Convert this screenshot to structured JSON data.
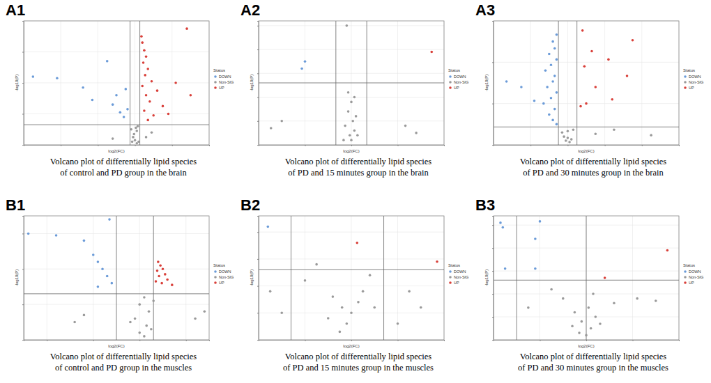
{
  "chart_data": [
    {
      "type": "scatter",
      "panel": "A1",
      "title": [
        "Volcano plot of differentially lipid species",
        "of control and PD group in the brain"
      ],
      "xlabel": "log2(FC)",
      "ylabel": "-log10(P)",
      "xlim": [
        -6,
        4
      ],
      "ylim": [
        0,
        8
      ],
      "xticks": [
        -6,
        -4,
        -2,
        0,
        2,
        4
      ],
      "yticks": [
        0,
        2,
        4,
        6,
        8
      ],
      "tick_labels": false,
      "grid": true,
      "legend": "right",
      "legend_title": "Status",
      "reference_lines": {
        "x": [
          -0.263,
          0.263
        ],
        "y": [
          1.3
        ]
      },
      "series": [
        {
          "name": "DOWN",
          "color": "#6b9bd8",
          "x": [
            -5.5,
            -4.2,
            -2.8,
            -1.5,
            -2.3,
            -1.0,
            -1.2,
            -0.8,
            -0.6,
            -0.5,
            -0.4
          ],
          "values": [
            4.4,
            4.3,
            3.7,
            5.4,
            2.9,
            3.2,
            2.6,
            2.1,
            1.8,
            3.6,
            2.3
          ]
        },
        {
          "name": "Non-SIG",
          "color": "#9a9a9a",
          "x": [
            -0.1,
            0.1,
            0.0,
            -0.2,
            0.2,
            0.15,
            -0.05,
            0.05,
            0.1,
            -1.2,
            0.6,
            0.9,
            -0.15
          ],
          "values": [
            0.5,
            0.9,
            0.3,
            1.0,
            0.2,
            1.2,
            0.7,
            1.1,
            0.1,
            0.4,
            0.5,
            0.8,
            0.2
          ]
        },
        {
          "name": "UP",
          "color": "#d9403a",
          "x": [
            0.35,
            0.4,
            0.5,
            0.6,
            0.45,
            0.7,
            0.55,
            0.9,
            0.4,
            1.2,
            0.6,
            0.8,
            1.5,
            0.5,
            1.0,
            0.7,
            2.8,
            2.2,
            3.0,
            1.8
          ],
          "values": [
            7.0,
            6.6,
            6.1,
            5.7,
            5.3,
            4.9,
            4.5,
            4.1,
            3.8,
            3.5,
            3.2,
            2.8,
            2.5,
            2.2,
            1.9,
            1.6,
            7.5,
            4.0,
            3.2,
            2.0
          ]
        }
      ]
    },
    {
      "type": "scatter",
      "panel": "A2",
      "title": [
        "Volcano plot of differentially lipid species",
        "of PD and 15 minutes group in the brain"
      ],
      "xlabel": "log2(FC)",
      "ylabel": "-log10(P)",
      "xlim": [
        -6,
        6
      ],
      "ylim": [
        0,
        2.6
      ],
      "xticks": [
        -6,
        -3,
        0,
        3,
        6
      ],
      "yticks": [
        0,
        0.5,
        1,
        1.5,
        2,
        2.5
      ],
      "tick_labels": false,
      "grid": true,
      "legend": "right",
      "legend_title": "Status",
      "reference_lines": {
        "x": [
          -1,
          1
        ],
        "y": [
          1.3
        ]
      },
      "series": [
        {
          "name": "DOWN",
          "color": "#6b9bd8",
          "x": [
            -3.0,
            -3.2
          ],
          "values": [
            1.75,
            1.6
          ]
        },
        {
          "name": "Non-SIG",
          "color": "#9a9a9a",
          "x": [
            -0.3,
            0,
            -0.2,
            0.1,
            0.2,
            -0.1,
            0.3,
            -0.4,
            0,
            0.4,
            -0.5,
            -4.5,
            -5.2,
            3.5,
            4.2,
            0.2,
            -0.2
          ],
          "values": [
            2.5,
            0.9,
            0.7,
            0.5,
            0.3,
            0.2,
            0.6,
            0.4,
            0.1,
            0.2,
            0.1,
            0.5,
            0.35,
            0.4,
            0.25,
            1.0,
            1.1
          ]
        },
        {
          "name": "UP",
          "color": "#d9403a",
          "x": [
            5.2
          ],
          "values": [
            1.95
          ]
        }
      ]
    },
    {
      "type": "scatter",
      "panel": "A3",
      "title": [
        "Volcano plot of differentially lipid species",
        "of PD and 30 minutes group in the brain"
      ],
      "xlabel": "log2(FC)",
      "ylabel": "-log10(P)",
      "xlim": [
        -4,
        6
      ],
      "ylim": [
        0,
        9
      ],
      "xticks": [
        -4,
        -2,
        0,
        2,
        4,
        6
      ],
      "yticks": [
        0,
        3,
        6,
        9
      ],
      "tick_labels": false,
      "grid": true,
      "legend": "right",
      "legend_title": "Status",
      "reference_lines": {
        "x": [
          -0.5,
          0.5
        ],
        "y": [
          1.3
        ]
      },
      "series": [
        {
          "name": "DOWN",
          "color": "#6b9bd8",
          "x": [
            -0.6,
            -0.8,
            -0.7,
            -1.0,
            -0.6,
            -0.9,
            -1.2,
            -0.7,
            -0.8,
            -1.1,
            -0.6,
            -0.9,
            -1.3,
            -0.7,
            -1.0,
            -0.8,
            -0.6,
            -3.3,
            -2.5,
            -1.8
          ],
          "values": [
            8.0,
            7.5,
            7.0,
            6.6,
            6.2,
            5.8,
            5.4,
            5.0,
            4.6,
            4.2,
            3.8,
            3.4,
            3.0,
            2.6,
            2.2,
            1.8,
            1.5,
            4.6,
            4.2,
            3.2
          ]
        },
        {
          "name": "Non-SIG",
          "color": "#9a9a9a",
          "x": [
            0,
            -0.2,
            0.2,
            -0.3,
            0.1,
            0.3,
            0,
            -0.1,
            1.5,
            2.5,
            4.5
          ],
          "values": [
            1.0,
            0.6,
            0.4,
            0.9,
            0.2,
            1.1,
            0.5,
            0.3,
            0.8,
            1.1,
            0.7
          ]
        },
        {
          "name": "UP",
          "color": "#d9403a",
          "x": [
            0.8,
            3.5,
            1.3,
            2.2,
            0.9,
            3.2,
            1.5,
            2.4,
            1.0,
            0.7
          ],
          "values": [
            8.3,
            7.6,
            6.8,
            6.2,
            5.7,
            5.0,
            4.2,
            3.3,
            3.0,
            2.8
          ]
        }
      ]
    },
    {
      "type": "scatter",
      "panel": "B1",
      "title": [
        "Volcano plot of differentially lipid species",
        "of control and PD group in the muscles"
      ],
      "xlabel": "log2(FC)",
      "ylabel": "-log10(P)",
      "xlim": [
        -2.5,
        1.5
      ],
      "ylim": [
        0,
        3.5
      ],
      "xticks": [
        -2,
        -1,
        0,
        1
      ],
      "yticks": [
        0,
        1,
        2,
        3
      ],
      "tick_labels": false,
      "grid": true,
      "legend": "right",
      "legend_title": "Status",
      "reference_lines": {
        "x": [
          -0.5,
          0.3
        ],
        "y": [
          1.3
        ]
      },
      "series": [
        {
          "name": "DOWN",
          "color": "#6b9bd8",
          "x": [
            -2.4,
            -1.8,
            -0.65,
            -1.2,
            -1.0,
            -0.9,
            -0.8,
            -0.7,
            -0.6,
            -0.9
          ],
          "values": [
            3.0,
            2.95,
            3.4,
            2.8,
            2.4,
            2.2,
            2.0,
            1.8,
            1.6,
            1.5
          ]
        },
        {
          "name": "Non-SIG",
          "color": "#9a9a9a",
          "x": [
            0.1,
            0,
            0.2,
            -0.1,
            0.15,
            0,
            0.25,
            -0.2,
            0.1,
            -1.4,
            -1.2,
            1.2,
            1.4,
            0.3
          ],
          "values": [
            1.2,
            1.0,
            0.8,
            0.6,
            0.4,
            0.2,
            0.3,
            0.5,
            0.1,
            0.5,
            0.7,
            0.6,
            0.8,
            1.1
          ]
        },
        {
          "name": "UP",
          "color": "#d9403a",
          "x": [
            0.4,
            0.45,
            0.5,
            0.38,
            0.55,
            0.42,
            0.6,
            0.35,
            0.48,
            0.7
          ],
          "values": [
            2.2,
            2.1,
            2.0,
            1.95,
            1.85,
            1.8,
            1.7,
            1.65,
            1.6,
            1.55
          ]
        }
      ]
    },
    {
      "type": "scatter",
      "panel": "B2",
      "title": [
        "Volcano plot of differentially lipid species",
        "of PD and 15 minutes group in the muscles"
      ],
      "xlabel": "log2(FC)",
      "ylabel": "-log10(P)",
      "xlim": [
        -4,
        4
      ],
      "ylim": [
        0,
        2.3
      ],
      "xticks": [
        -4,
        -2,
        0,
        2,
        4
      ],
      "yticks": [
        0,
        0.5,
        1,
        1.5,
        2
      ],
      "tick_labels": false,
      "grid": true,
      "legend": "right",
      "legend_title": "Status",
      "reference_lines": {
        "x": [
          -2.6,
          1.4
        ],
        "y": [
          1.3
        ]
      },
      "series": [
        {
          "name": "DOWN",
          "color": "#6b9bd8",
          "x": [
            -3.6
          ],
          "values": [
            2.1
          ]
        },
        {
          "name": "Non-SIG",
          "color": "#9a9a9a",
          "x": [
            -1.0,
            -0.5,
            -0.2,
            0,
            0.3,
            -0.4,
            0.5,
            -0.8,
            1.0,
            -3.0,
            -2.0,
            2.5,
            3.0,
            -1.5,
            0.8,
            2.0,
            -3.5
          ],
          "values": [
            0.4,
            0.15,
            0.3,
            0.5,
            0.7,
            0.6,
            0.9,
            0.8,
            0.6,
            0.5,
            1.1,
            0.9,
            0.6,
            1.4,
            1.2,
            0.3,
            0.9
          ]
        },
        {
          "name": "UP",
          "color": "#d9403a",
          "x": [
            0.25,
            3.7
          ],
          "values": [
            1.8,
            1.45
          ]
        }
      ]
    },
    {
      "type": "scatter",
      "panel": "B3",
      "title": [
        "Volcano plot of differentially lipid species",
        "of PD and 30 minutes group in the muscles"
      ],
      "xlabel": "log2(FC)",
      "ylabel": "-log10(P)",
      "xlim": [
        -4,
        4
      ],
      "ylim": [
        0,
        2.7
      ],
      "xticks": [
        -4,
        -2,
        0,
        2,
        4
      ],
      "yticks": [
        0,
        0.5,
        1,
        1.5,
        2,
        2.5
      ],
      "tick_labels": false,
      "grid": true,
      "legend": "right",
      "legend_title": "Status",
      "reference_lines": {
        "x": [
          -3.0,
          0.0
        ],
        "y": [
          1.3
        ]
      },
      "series": [
        {
          "name": "DOWN",
          "color": "#6b9bd8",
          "x": [
            -3.7,
            -3.6,
            -2.0,
            -2.2,
            -3.5,
            -2.2
          ],
          "values": [
            2.55,
            2.45,
            2.58,
            2.2,
            1.55,
            1.55
          ]
        },
        {
          "name": "Non-SIG",
          "color": "#9a9a9a",
          "x": [
            -0.6,
            -0.3,
            0,
            0.2,
            -0.2,
            0.4,
            -0.5,
            0.1,
            0.6,
            -1.0,
            1.2,
            2.2,
            3.0,
            -2.5,
            -1.5,
            0.3
          ],
          "values": [
            0.3,
            0.15,
            0.1,
            0.25,
            0.4,
            0.5,
            0.6,
            0.7,
            0.35,
            0.9,
            0.8,
            0.9,
            0.85,
            0.7,
            1.1,
            1.0
          ]
        },
        {
          "name": "UP",
          "color": "#d9403a",
          "x": [
            3.5,
            0.8
          ],
          "values": [
            1.95,
            1.35
          ]
        }
      ]
    }
  ]
}
